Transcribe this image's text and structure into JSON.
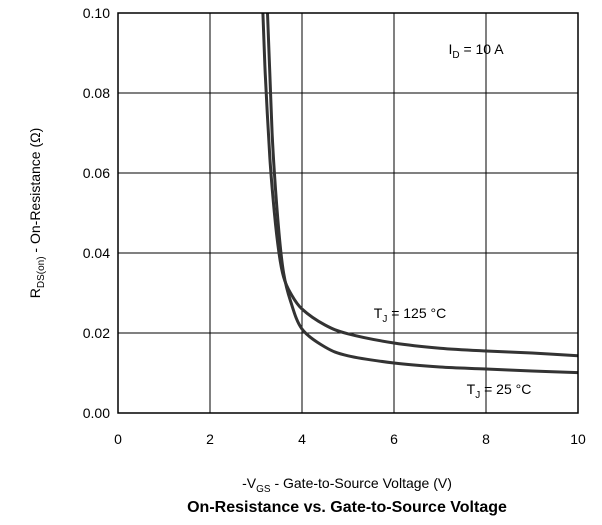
{
  "chart_data": {
    "type": "line",
    "title": "On-Resistance vs. Gate-to-Source Voltage",
    "xlabel": {
      "prefix": "-V",
      "sub": "GS",
      "rest": " - Gate-to-Source Voltage (V)"
    },
    "ylabel": {
      "prefix": "R",
      "sub": "DS(on)",
      "rest": " - On-Resistance (Ω)"
    },
    "xlim": [
      0,
      10
    ],
    "ylim": [
      0,
      0.1
    ],
    "x_ticks": [
      "0",
      "2",
      "4",
      "6",
      "8",
      "10"
    ],
    "y_ticks": [
      "0.00",
      "0.02",
      "0.04",
      "0.06",
      "0.08",
      "0.10"
    ],
    "grid": true,
    "annotations": {
      "id": {
        "prefix": "I",
        "sub": "D",
        "rest": " = 10 A"
      },
      "t125": {
        "prefix": "T",
        "sub": "J",
        "rest": " = 125 °C"
      },
      "t25": {
        "prefix": "T",
        "sub": "J",
        "rest": " = 25 °C"
      }
    },
    "series": [
      {
        "x": [
          3.15,
          3.2,
          3.3,
          3.4,
          3.5,
          3.6,
          3.75,
          4.0,
          4.5,
          5.0,
          6.0,
          7.0,
          8.0,
          9.0,
          10.0
        ],
        "y": [
          0.1,
          0.085,
          0.064,
          0.05,
          0.04,
          0.034,
          0.03,
          0.026,
          0.022,
          0.0198,
          0.0175,
          0.0162,
          0.0155,
          0.015,
          0.0143
        ]
      },
      {
        "x": [
          3.25,
          3.3,
          3.35,
          3.4,
          3.5,
          3.6,
          3.75,
          4.0,
          4.5,
          5.0,
          6.0,
          7.0,
          8.0,
          9.0,
          10.0
        ],
        "y": [
          0.1,
          0.085,
          0.07,
          0.06,
          0.045,
          0.035,
          0.028,
          0.021,
          0.0165,
          0.0143,
          0.0125,
          0.0115,
          0.011,
          0.0105,
          0.0101
        ]
      }
    ]
  }
}
